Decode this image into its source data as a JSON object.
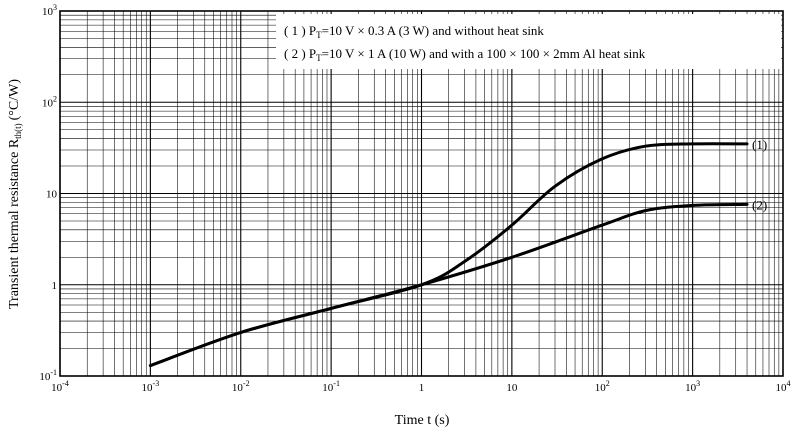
{
  "chart_data": {
    "type": "line",
    "xscale": "log",
    "yscale": "log",
    "xlim": [
      0.0001,
      10000
    ],
    "ylim": [
      0.1,
      1000
    ],
    "grid": true,
    "xlabel": "Time t (s)",
    "ylabel": "Transient thermal resistance R",
    "ylabel_sub": "th(t)",
    "ylabel_unit": "(°C/W)",
    "legend_lines": [
      "( 1 )  P₀=10 V × 0.3 A (3 W)  and without heat sink",
      "( 2 )  P₀=10 V × 1 A (10 W)  and with a 100 × 100 × 2mm Al heat sink"
    ],
    "legend": {
      "l1_prefix": "( 1 )  P",
      "l1_sub": "T",
      "l1_rest": "=10 V × 0.3 A (3 W)  and without heat sink",
      "l2_prefix": "( 2 )  P",
      "l2_sub": "T",
      "l2_rest": "=10 V × 1 A (10 W)  and with a 100 × 100 × 2mm Al heat sink"
    },
    "x_ticks": [
      {
        "v": 0.0001,
        "base": "10",
        "exp": "-4"
      },
      {
        "v": 0.001,
        "base": "10",
        "exp": "-3"
      },
      {
        "v": 0.01,
        "base": "10",
        "exp": "-2"
      },
      {
        "v": 0.1,
        "base": "10",
        "exp": "-1"
      },
      {
        "v": 1,
        "base": "1",
        "exp": ""
      },
      {
        "v": 10,
        "base": "10",
        "exp": ""
      },
      {
        "v": 100,
        "base": "10",
        "exp": "2"
      },
      {
        "v": 1000,
        "base": "10",
        "exp": "3"
      },
      {
        "v": 10000,
        "base": "10",
        "exp": "4"
      }
    ],
    "y_ticks": [
      {
        "v": 0.1,
        "base": "10",
        "exp": "-1"
      },
      {
        "v": 1,
        "base": "1",
        "exp": ""
      },
      {
        "v": 10,
        "base": "10",
        "exp": ""
      },
      {
        "v": 100,
        "base": "10",
        "exp": "2"
      },
      {
        "v": 1000,
        "base": "10",
        "exp": "3"
      }
    ],
    "series": [
      {
        "name": "(1)",
        "x": [
          0.001,
          0.01,
          0.1,
          1,
          3,
          10,
          30,
          100,
          300,
          1000,
          4000
        ],
        "y": [
          0.13,
          0.3,
          0.55,
          1.0,
          1.8,
          4.5,
          12,
          24,
          33,
          35,
          35
        ],
        "color": "#000000"
      },
      {
        "name": "(2)",
        "x": [
          0.001,
          0.01,
          0.1,
          1,
          10,
          100,
          300,
          1000,
          4000
        ],
        "y": [
          0.13,
          0.3,
          0.55,
          1.0,
          2.0,
          4.5,
          6.5,
          7.4,
          7.6
        ],
        "color": "#000000"
      }
    ]
  }
}
